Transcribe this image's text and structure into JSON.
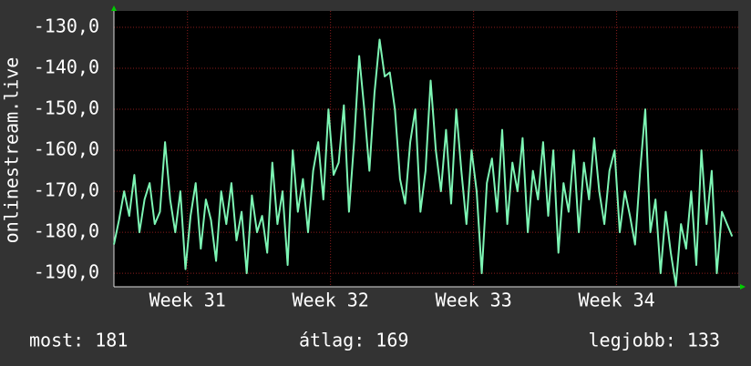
{
  "chart_data": {
    "type": "line",
    "ylabel": "onlinestream.live",
    "x": [
      0,
      0.25,
      0.5,
      0.75,
      1,
      1.25,
      1.5,
      1.75,
      2,
      2.25,
      2.5,
      2.75,
      3,
      3.25,
      3.5,
      3.75,
      4,
      4.25,
      4.5,
      4.75,
      5,
      5.25,
      5.5,
      5.75,
      6,
      6.25,
      6.5,
      6.75,
      7,
      7.25,
      7.5,
      7.75,
      8,
      8.25,
      8.5,
      8.75,
      9,
      9.25,
      9.5,
      9.75,
      10,
      10.25,
      10.5,
      10.75,
      11,
      11.25,
      11.5,
      11.75,
      12,
      12.25,
      12.5,
      12.75,
      13,
      13.25,
      13.5,
      13.75,
      14,
      14.25,
      14.5,
      14.75,
      15,
      15.25,
      15.5,
      15.75,
      16,
      16.25,
      16.5,
      16.75,
      17,
      17.25,
      17.5,
      17.75,
      18,
      18.25,
      18.5,
      18.75,
      19,
      19.25,
      19.5,
      19.75,
      20,
      20.25,
      20.5,
      20.75,
      21,
      21.25,
      21.5,
      21.75,
      22,
      22.25,
      22.5,
      22.75,
      23,
      23.25,
      23.5,
      23.75,
      24,
      24.25,
      24.5,
      24.75,
      25,
      25.25,
      25.5,
      25.75,
      26,
      26.25,
      26.5,
      26.75,
      27,
      27.25,
      27.5,
      27.75,
      28,
      28.25,
      28.5,
      28.75,
      29,
      29.25,
      29.5,
      29.75,
      30,
      30.25
    ],
    "series": [
      {
        "color": "#7df5b4",
        "values": [
          -183,
          -177,
          -170,
          -176,
          -166,
          -180,
          -172,
          -168,
          -178,
          -175,
          -158,
          -172,
          -180,
          -170,
          -189,
          -176,
          -168,
          -184,
          -172,
          -177,
          -187,
          -170,
          -178,
          -168,
          -182,
          -175,
          -190,
          -171,
          -180,
          -176,
          -185,
          -163,
          -178,
          -170,
          -188,
          -160,
          -175,
          -167,
          -180,
          -165,
          -158,
          -172,
          -150,
          -166,
          -163,
          -149,
          -175,
          -158,
          -137,
          -150,
          -165,
          -146,
          -133,
          -142,
          -141,
          -150,
          -167,
          -173,
          -158,
          -150,
          -175,
          -165,
          -143,
          -160,
          -170,
          -155,
          -173,
          -150,
          -165,
          -178,
          -160,
          -170,
          -190,
          -168,
          -162,
          -175,
          -155,
          -178,
          -163,
          -170,
          -157,
          -180,
          -165,
          -172,
          -158,
          -176,
          -160,
          -185,
          -168,
          -175,
          -160,
          -180,
          -163,
          -172,
          -157,
          -170,
          -178,
          -165,
          -160,
          -180,
          -170,
          -176,
          -183,
          -165,
          -150,
          -180,
          -172,
          -190,
          -175,
          -185,
          -193,
          -178,
          -184,
          -170,
          -188,
          -160,
          -178,
          -165,
          -190,
          -175,
          -178,
          -181
        ]
      }
    ],
    "xlim": [
      0,
      30.55
    ],
    "xticks": [
      {
        "value": 3.6,
        "label": "Week 31"
      },
      {
        "value": 10.6,
        "label": "Week 32"
      },
      {
        "value": 17.6,
        "label": "Week 33"
      },
      {
        "value": 24.6,
        "label": "Week 34"
      }
    ],
    "ylim": [
      -193.3,
      -126
    ],
    "yticks": [
      {
        "value": -130,
        "label": "-130,0"
      },
      {
        "value": -140,
        "label": "-140,0"
      },
      {
        "value": -150,
        "label": "-150,0"
      },
      {
        "value": -160,
        "label": "-160,0"
      },
      {
        "value": -170,
        "label": "-170,0"
      },
      {
        "value": -180,
        "label": "-180,0"
      },
      {
        "value": -190,
        "label": "-190,0"
      }
    ],
    "grid": true
  },
  "footer": {
    "current": "most: 181",
    "average": "átlag: 169",
    "best": "legjobb: 133"
  }
}
